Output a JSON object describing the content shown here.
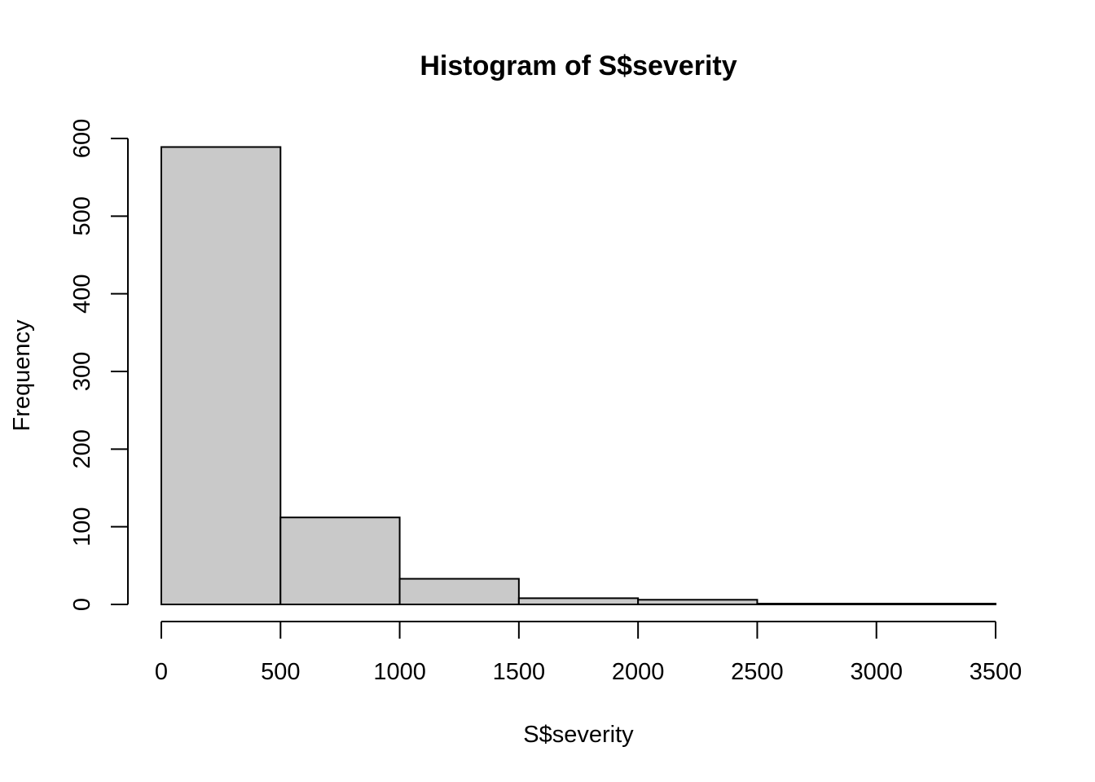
{
  "chart_data": {
    "type": "bar",
    "subtype": "histogram",
    "title": "Histogram of S$severity",
    "xlabel": "S$severity",
    "ylabel": "Frequency",
    "bins": [
      {
        "from": 0,
        "to": 500,
        "count": 589
      },
      {
        "from": 500,
        "to": 1000,
        "count": 112
      },
      {
        "from": 1000,
        "to": 1500,
        "count": 33
      },
      {
        "from": 1500,
        "to": 2000,
        "count": 8
      },
      {
        "from": 2000,
        "to": 2500,
        "count": 6
      },
      {
        "from": 2500,
        "to": 3000,
        "count": 1
      },
      {
        "from": 3000,
        "to": 3500,
        "count": 1
      }
    ],
    "x_ticks": [
      "0",
      "500",
      "1000",
      "1500",
      "2000",
      "2500",
      "3000",
      "3500"
    ],
    "y_ticks": [
      "0",
      "100",
      "200",
      "300",
      "400",
      "500",
      "600"
    ],
    "xlim": [
      0,
      3500
    ],
    "ylim": [
      0,
      600
    ],
    "grid": false,
    "legend": false,
    "colors": {
      "bar_fill": "#c9c9c9",
      "bar_stroke": "#000000"
    }
  }
}
